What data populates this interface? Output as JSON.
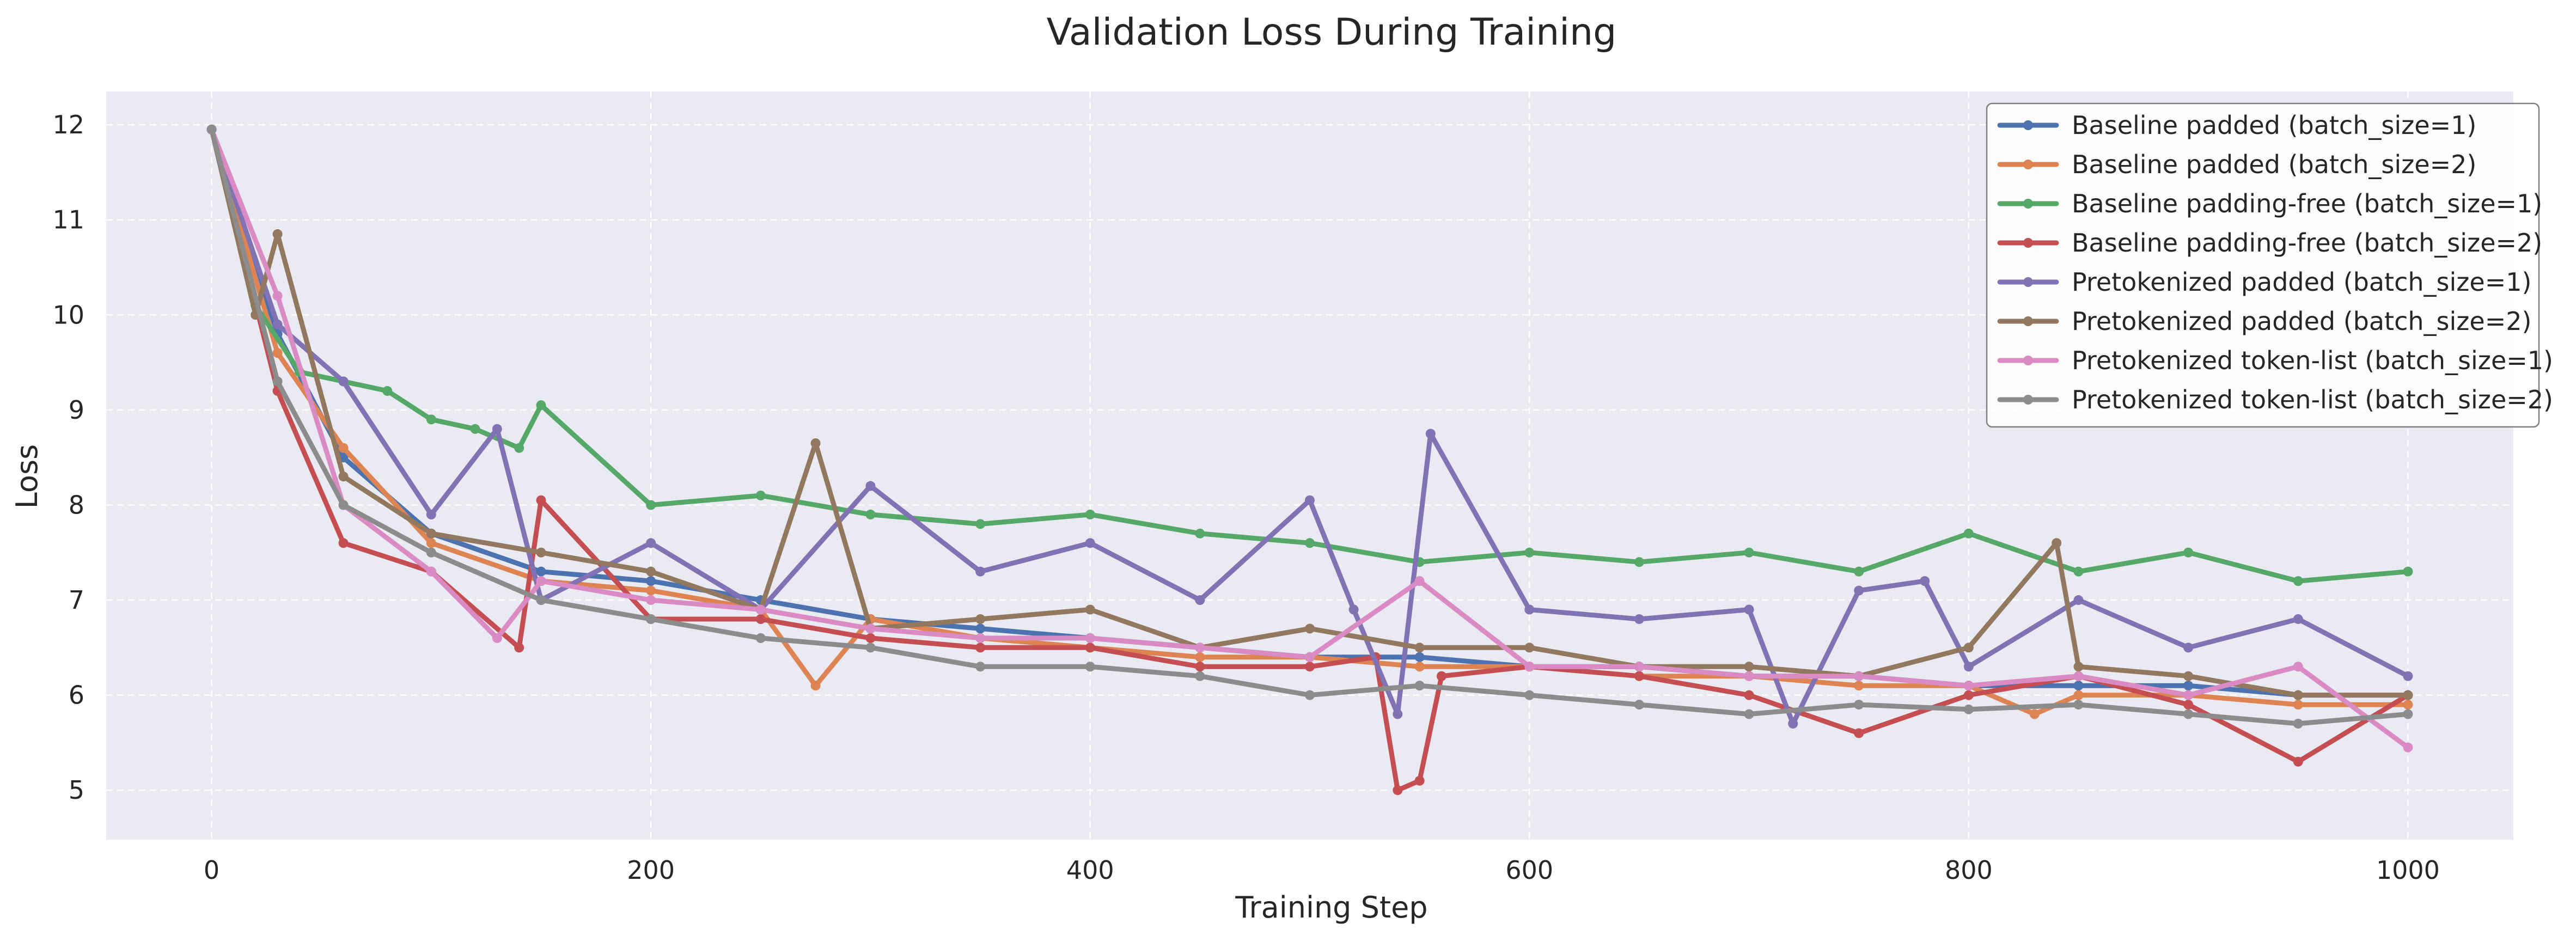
{
  "chart_data": {
    "type": "line",
    "title": "Validation Loss During Training",
    "xlabel": "Training Step",
    "ylabel": "Loss",
    "xlim": [
      -48,
      1048
    ],
    "ylim": [
      4.48,
      12.35
    ],
    "xticks": [
      0,
      200,
      400,
      600,
      800,
      1000
    ],
    "yticks": [
      5,
      6,
      7,
      8,
      9,
      10,
      11,
      12
    ],
    "grid": true,
    "legend_position": "top-right",
    "colors": {
      "plot_background": "#eaeaf2",
      "grid": "#ffffff",
      "text": "#262626"
    },
    "series": [
      {
        "name": "Baseline padded (batch_size=1)",
        "color": "#4c72b0",
        "x": [
          0,
          30,
          60,
          100,
          150,
          200,
          250,
          300,
          350,
          400,
          450,
          500,
          550,
          600,
          650,
          700,
          750,
          800,
          850,
          900,
          950,
          1000
        ],
        "y": [
          11.95,
          9.8,
          8.5,
          7.7,
          7.3,
          7.2,
          7.0,
          6.8,
          6.7,
          6.6,
          6.5,
          6.4,
          6.4,
          6.3,
          6.3,
          6.2,
          6.2,
          6.1,
          6.1,
          6.1,
          6.0,
          6.0
        ]
      },
      {
        "name": "Baseline padded (batch_size=2)",
        "color": "#dd8452",
        "x": [
          0,
          30,
          60,
          100,
          150,
          200,
          250,
          275,
          300,
          350,
          400,
          450,
          500,
          550,
          600,
          650,
          700,
          750,
          800,
          830,
          850,
          900,
          950,
          1000
        ],
        "y": [
          11.95,
          9.6,
          8.6,
          7.6,
          7.2,
          7.1,
          6.9,
          6.1,
          6.8,
          6.6,
          6.5,
          6.4,
          6.4,
          6.3,
          6.3,
          6.2,
          6.2,
          6.1,
          6.1,
          5.8,
          6.0,
          6.0,
          5.9,
          5.9
        ]
      },
      {
        "name": "Baseline padding-free (batch_size=1)",
        "color": "#55a868",
        "x": [
          0,
          20,
          40,
          60,
          80,
          100,
          120,
          140,
          150,
          200,
          250,
          300,
          350,
          400,
          450,
          500,
          550,
          600,
          650,
          700,
          750,
          800,
          850,
          900,
          950,
          1000
        ],
        "y": [
          11.95,
          10.1,
          9.4,
          9.3,
          9.2,
          8.9,
          8.8,
          8.6,
          9.05,
          8.0,
          8.1,
          7.9,
          7.8,
          7.9,
          7.7,
          7.6,
          7.4,
          7.5,
          7.4,
          7.5,
          7.3,
          7.7,
          7.3,
          7.5,
          7.2,
          7.3
        ]
      },
      {
        "name": "Baseline padding-free (batch_size=2)",
        "color": "#c44e52",
        "x": [
          0,
          30,
          60,
          100,
          140,
          150,
          200,
          250,
          300,
          350,
          400,
          450,
          500,
          530,
          540,
          550,
          560,
          600,
          650,
          700,
          750,
          800,
          850,
          900,
          950,
          1000
        ],
        "y": [
          11.95,
          9.2,
          7.6,
          7.3,
          6.5,
          8.05,
          6.8,
          6.8,
          6.6,
          6.5,
          6.5,
          6.3,
          6.3,
          6.4,
          5.0,
          5.1,
          6.2,
          6.3,
          6.2,
          6.0,
          5.6,
          6.0,
          6.2,
          5.9,
          5.3,
          6.0
        ]
      },
      {
        "name": "Pretokenized padded (batch_size=1)",
        "color": "#8172b3",
        "x": [
          0,
          30,
          60,
          100,
          130,
          150,
          200,
          250,
          300,
          350,
          400,
          450,
          500,
          520,
          540,
          555,
          600,
          650,
          700,
          720,
          750,
          780,
          800,
          850,
          900,
          950,
          1000
        ],
        "y": [
          11.95,
          9.9,
          9.3,
          7.9,
          8.8,
          7.0,
          7.6,
          6.9,
          8.2,
          7.3,
          7.6,
          7.0,
          8.05,
          6.9,
          5.8,
          8.75,
          6.9,
          6.8,
          6.9,
          5.7,
          7.1,
          7.2,
          6.3,
          7.0,
          6.5,
          6.8,
          6.2
        ]
      },
      {
        "name": "Pretokenized padded (batch_size=2)",
        "color": "#937860",
        "x": [
          0,
          20,
          30,
          60,
          100,
          150,
          200,
          250,
          275,
          300,
          350,
          400,
          450,
          500,
          550,
          600,
          650,
          700,
          750,
          800,
          840,
          850,
          900,
          950,
          1000
        ],
        "y": [
          11.95,
          10.0,
          10.85,
          8.3,
          7.7,
          7.5,
          7.3,
          6.9,
          8.65,
          6.7,
          6.8,
          6.9,
          6.5,
          6.7,
          6.5,
          6.5,
          6.3,
          6.3,
          6.2,
          6.5,
          7.6,
          6.3,
          6.2,
          6.0,
          6.0
        ]
      },
      {
        "name": "Pretokenized token-list (batch_size=1)",
        "color": "#da8bc3",
        "x": [
          0,
          30,
          60,
          100,
          130,
          150,
          200,
          250,
          300,
          350,
          400,
          450,
          500,
          550,
          600,
          650,
          700,
          750,
          800,
          850,
          900,
          950,
          1000
        ],
        "y": [
          11.95,
          10.2,
          8.0,
          7.3,
          6.6,
          7.2,
          7.0,
          6.9,
          6.7,
          6.6,
          6.6,
          6.5,
          6.4,
          7.2,
          6.3,
          6.3,
          6.2,
          6.2,
          6.1,
          6.2,
          6.0,
          6.3,
          5.45
        ]
      },
      {
        "name": "Pretokenized token-list (batch_size=2)",
        "color": "#8c8c8c",
        "x": [
          0,
          30,
          60,
          100,
          150,
          200,
          250,
          300,
          350,
          400,
          450,
          500,
          550,
          600,
          650,
          700,
          750,
          800,
          850,
          900,
          950,
          1000
        ],
        "y": [
          11.95,
          9.3,
          8.0,
          7.5,
          7.0,
          6.8,
          6.6,
          6.5,
          6.3,
          6.3,
          6.2,
          6.0,
          6.1,
          6.0,
          5.9,
          5.8,
          5.9,
          5.85,
          5.9,
          5.8,
          5.7,
          5.8
        ]
      }
    ]
  }
}
